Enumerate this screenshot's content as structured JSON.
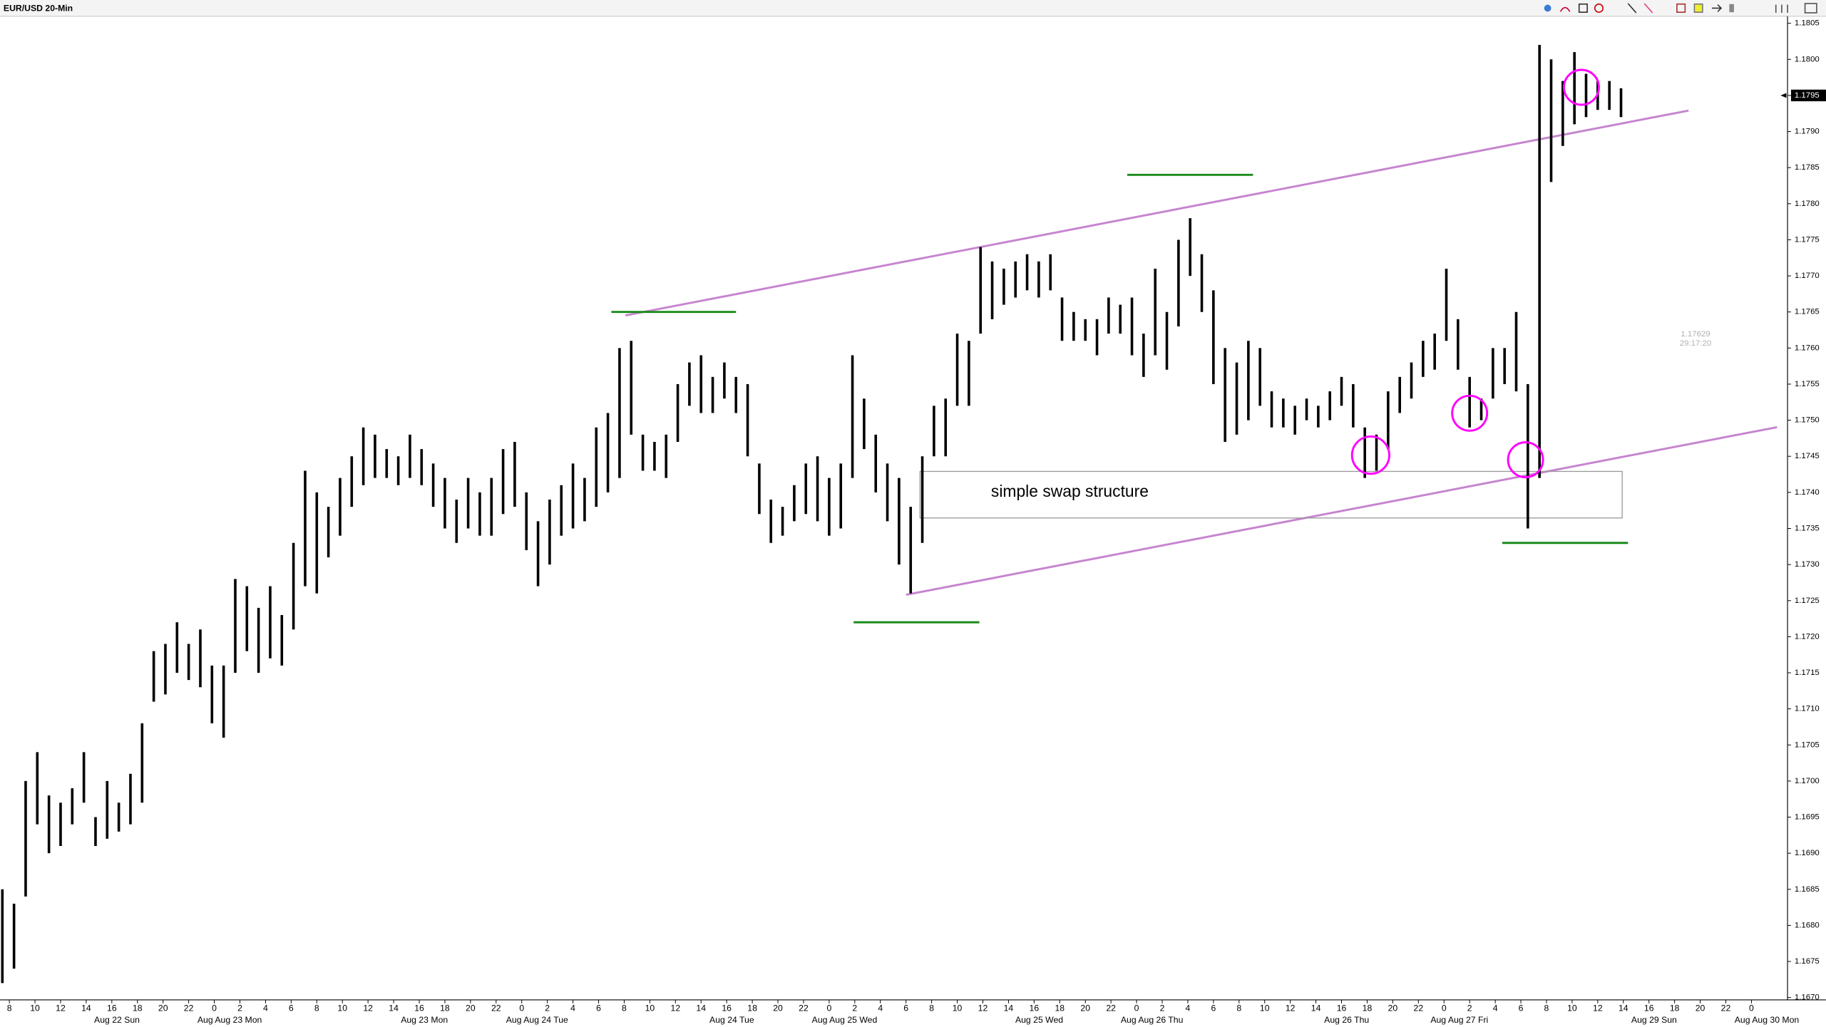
{
  "chart_data": {
    "type": "ohlc",
    "title": "EUR/USD 20-Min",
    "ylim": [
      1.167,
      1.1805
    ],
    "yticks": [
      {
        "value": 1.167,
        "label": "1.1670"
      },
      {
        "value": 1.1675,
        "label": "1.1675"
      },
      {
        "value": 1.168,
        "label": "1.1680"
      },
      {
        "value": 1.1685,
        "label": "1.1685"
      },
      {
        "value": 1.169,
        "label": "1.1690"
      },
      {
        "value": 1.1695,
        "label": "1.1695"
      },
      {
        "value": 1.17,
        "label": "1.1700"
      },
      {
        "value": 1.1705,
        "label": "1.1705"
      },
      {
        "value": 1.171,
        "label": "1.1710"
      },
      {
        "value": 1.1715,
        "label": "1.1715"
      },
      {
        "value": 1.172,
        "label": "1.1720"
      },
      {
        "value": 1.1725,
        "label": "1.1725"
      },
      {
        "value": 1.173,
        "label": "1.1730"
      },
      {
        "value": 1.1735,
        "label": "1.1735"
      },
      {
        "value": 1.174,
        "label": "1.1740"
      },
      {
        "value": 1.1745,
        "label": "1.1745"
      },
      {
        "value": 1.175,
        "label": "1.1750"
      },
      {
        "value": 1.1755,
        "label": "1.1755"
      },
      {
        "value": 1.176,
        "label": "1.1760"
      },
      {
        "value": 1.1765,
        "label": "1.1765"
      },
      {
        "value": 1.177,
        "label": "1.1770"
      },
      {
        "value": 1.1775,
        "label": "1.1775"
      },
      {
        "value": 1.178,
        "label": "1.1780"
      },
      {
        "value": 1.1785,
        "label": "1.1785"
      },
      {
        "value": 1.179,
        "label": "1.1790"
      },
      {
        "value": 1.1795,
        "label": "1.1795"
      },
      {
        "value": 1.18,
        "label": "1.1800"
      },
      {
        "value": 1.1805,
        "label": "1.1805"
      }
    ],
    "hour_ticks": [
      8,
      10,
      12,
      14,
      16,
      18,
      20,
      22,
      0,
      2,
      4,
      6,
      8,
      10,
      12,
      14,
      16,
      18,
      20,
      22,
      0,
      2,
      4,
      6,
      8,
      10,
      12,
      14,
      16,
      18,
      20,
      22,
      0,
      2,
      4,
      6,
      8,
      10,
      12,
      14,
      16,
      18,
      20,
      22,
      0,
      2,
      4,
      6,
      8,
      10,
      12,
      14,
      16,
      18,
      20,
      22,
      0,
      2,
      4,
      6,
      8,
      10,
      12,
      14,
      16,
      18,
      20,
      22,
      0
    ],
    "date_labels": [
      "Aug 22 Sun",
      "Aug Aug 23 Mon",
      "Aug 23 Mon",
      "Aug Aug 24 Tue",
      "Aug 24 Tue",
      "Aug Aug 25 Wed",
      "Aug 25 Wed",
      "Aug Aug 26 Thu",
      "Aug 26 Thu",
      "Aug Aug 27 Fri",
      "Aug 29 Sun",
      "Aug Aug 30 Mon"
    ],
    "bar_color": "#000000",
    "high": [
      1.1685,
      1.1683,
      1.17,
      1.1704,
      1.1698,
      1.1697,
      1.1699,
      1.1704,
      1.1695,
      1.17,
      1.1697,
      1.1701,
      1.1708,
      1.1718,
      1.1719,
      1.1722,
      1.1719,
      1.1721,
      1.1716,
      1.1716,
      1.1728,
      1.1727,
      1.1724,
      1.1727,
      1.1723,
      1.1733,
      1.1743,
      1.174,
      1.1738,
      1.1742,
      1.1745,
      1.1749,
      1.1748,
      1.1746,
      1.1745,
      1.1748,
      1.1746,
      1.1744,
      1.1742,
      1.1739,
      1.1742,
      1.174,
      1.1742,
      1.1746,
      1.1747,
      1.174,
      1.1736,
      1.1739,
      1.1741,
      1.1744,
      1.1742,
      1.1749,
      1.1751,
      1.176,
      1.1761,
      1.1748,
      1.1747,
      1.1748,
      1.1755,
      1.1758,
      1.1759,
      1.1756,
      1.1758,
      1.1756,
      1.1755,
      1.1744,
      1.1739,
      1.1738,
      1.1741,
      1.1744,
      1.1745,
      1.1742,
      1.1744,
      1.1759,
      1.1753,
      1.1748,
      1.1744,
      1.1742,
      1.1738,
      1.1745,
      1.1752,
      1.1753,
      1.1762,
      1.1761,
      1.1774,
      1.1772,
      1.1771,
      1.1772,
      1.1773,
      1.1772,
      1.1773,
      1.1767,
      1.1765,
      1.1764,
      1.1764,
      1.1767,
      1.1766,
      1.1767,
      1.1762,
      1.1771,
      1.1765,
      1.1775,
      1.1778,
      1.1773,
      1.1768,
      1.176,
      1.1758,
      1.1761,
      1.176,
      1.1754,
      1.1753,
      1.1752,
      1.1753,
      1.1752,
      1.1754,
      1.1756,
      1.1755,
      1.1749,
      1.1748,
      1.1754,
      1.1756,
      1.1758,
      1.1761,
      1.1762,
      1.1771,
      1.1764,
      1.1756,
      1.1753,
      1.176,
      1.176,
      1.1765,
      1.1755,
      1.1802,
      1.18,
      1.1797,
      1.1801,
      1.1798,
      1.1797,
      1.1797,
      1.1796
    ],
    "low": [
      1.1672,
      1.1674,
      1.1684,
      1.1694,
      1.169,
      1.1691,
      1.1694,
      1.1697,
      1.1691,
      1.1692,
      1.1693,
      1.1694,
      1.1697,
      1.1711,
      1.1712,
      1.1715,
      1.1714,
      1.1713,
      1.1708,
      1.1706,
      1.1715,
      1.1718,
      1.1715,
      1.1717,
      1.1716,
      1.1721,
      1.1727,
      1.1726,
      1.1731,
      1.1734,
      1.1738,
      1.1741,
      1.1742,
      1.1742,
      1.1741,
      1.1742,
      1.1741,
      1.1738,
      1.1735,
      1.1733,
      1.1735,
      1.1734,
      1.1734,
      1.1737,
      1.1738,
      1.1732,
      1.1727,
      1.173,
      1.1734,
      1.1735,
      1.1736,
      1.1738,
      1.174,
      1.1742,
      1.1748,
      1.1743,
      1.1743,
      1.1742,
      1.1747,
      1.1752,
      1.1751,
      1.1751,
      1.1753,
      1.1751,
      1.1745,
      1.1737,
      1.1733,
      1.1734,
      1.1736,
      1.1737,
      1.1736,
      1.1734,
      1.1735,
      1.1742,
      1.1746,
      1.174,
      1.1736,
      1.173,
      1.1726,
      1.1733,
      1.1745,
      1.1745,
      1.1752,
      1.1752,
      1.1762,
      1.1764,
      1.1766,
      1.1767,
      1.1768,
      1.1767,
      1.1768,
      1.1761,
      1.1761,
      1.1761,
      1.1759,
      1.1762,
      1.1762,
      1.1759,
      1.1756,
      1.1759,
      1.1757,
      1.1763,
      1.177,
      1.1765,
      1.1755,
      1.1747,
      1.1748,
      1.175,
      1.1752,
      1.1749,
      1.1749,
      1.1748,
      1.175,
      1.1749,
      1.175,
      1.1752,
      1.1749,
      1.1742,
      1.1743,
      1.1746,
      1.1751,
      1.1753,
      1.1756,
      1.1757,
      1.1761,
      1.1757,
      1.1749,
      1.175,
      1.1753,
      1.1755,
      1.1754,
      1.1735,
      1.1742,
      1.1783,
      1.1788,
      1.1791,
      1.1792,
      1.1793,
      1.1793,
      1.1792
    ],
    "levels": [
      1.1765,
      1.1784,
      1.1722,
      1.1733
    ],
    "level_color": "#1a8a1a",
    "last_price": 1.1795,
    "cursor_price": 1.17629,
    "cursor_time": "29:17:20",
    "annotation": "simple swap structure"
  }
}
